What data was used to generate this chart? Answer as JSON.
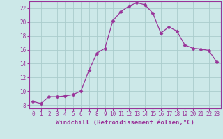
{
  "x": [
    0,
    1,
    2,
    3,
    4,
    5,
    6,
    7,
    8,
    9,
    10,
    11,
    12,
    13,
    14,
    15,
    16,
    17,
    18,
    19,
    20,
    21,
    22,
    23
  ],
  "y": [
    8.5,
    8.2,
    9.2,
    9.2,
    9.3,
    9.5,
    10.0,
    13.0,
    15.5,
    16.2,
    20.2,
    21.5,
    22.3,
    22.8,
    22.5,
    21.3,
    18.4,
    19.3,
    18.7,
    16.7,
    16.2,
    16.1,
    15.9,
    14.2
  ],
  "line_color": "#993399",
  "marker": "D",
  "marker_size": 2.5,
  "bg_color": "#cce8e8",
  "grid_color": "#aacccc",
  "xlabel": "Windchill (Refroidissement éolien,°C)",
  "xlim": [
    -0.5,
    23.5
  ],
  "ylim": [
    7.5,
    23.0
  ],
  "yticks": [
    8,
    10,
    12,
    14,
    16,
    18,
    20,
    22
  ],
  "xticks": [
    0,
    1,
    2,
    3,
    4,
    5,
    6,
    7,
    8,
    9,
    10,
    11,
    12,
    13,
    14,
    15,
    16,
    17,
    18,
    19,
    20,
    21,
    22,
    23
  ],
  "tick_color": "#993399",
  "label_color": "#993399",
  "label_fontsize": 6.5,
  "tick_fontsize": 5.5
}
